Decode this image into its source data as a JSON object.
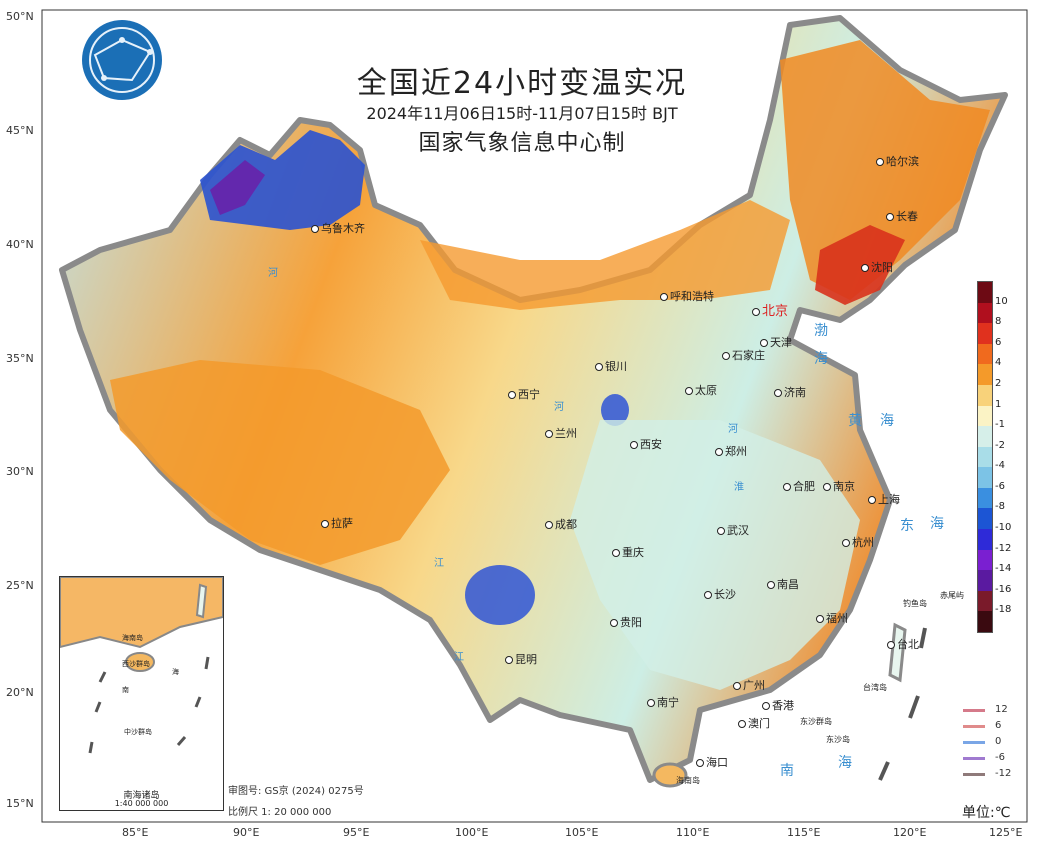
{
  "title": "全国近24小时变温实况",
  "time_range": "2024年11月06日15时-11月07日15时 BJT",
  "issuer": "国家气象信息中心制",
  "unit": "单位:℃",
  "review_number": "审图号: GS京 (2024) 0275号",
  "scale": "比例尺 1: 20 000 000",
  "lat_labels": [
    "50°N",
    "45°N",
    "40°N",
    "35°N",
    "30°N",
    "25°N",
    "20°N",
    "15°N"
  ],
  "lon_labels": [
    "85°E",
    "90°E",
    "95°E",
    "100°E",
    "105°E",
    "110°E",
    "115°E",
    "120°E",
    "125°E"
  ],
  "colorbar": {
    "labels": [
      "10",
      "8",
      "6",
      "4",
      "2",
      "1",
      "-1",
      "-2",
      "-4",
      "-6",
      "-8",
      "-10",
      "-12",
      "-14",
      "-16",
      "-18"
    ],
    "colors": [
      "#6d0a14",
      "#b00f1e",
      "#e0311e",
      "#f06a1e",
      "#f49a2a",
      "#f8d27a",
      "#fbf3c5",
      "#d6efe9",
      "#a9dde8",
      "#7cc3e6",
      "#3a8fe0",
      "#1c55d4",
      "#2e2ad8",
      "#7a1fd1",
      "#5a1aa0",
      "#7a1a2a",
      "#3a0a10"
    ]
  },
  "contour_legend": [
    {
      "label": "12",
      "color": "#d57a8a"
    },
    {
      "label": "6",
      "color": "#e08b8b"
    },
    {
      "label": "0",
      "color": "#7aa6e6"
    },
    {
      "label": "-6",
      "color": "#a07ad0"
    },
    {
      "label": "-12",
      "color": "#8f7a7a"
    }
  ],
  "cities": [
    "乌鲁木齐",
    "哈尔滨",
    "长春",
    "沈阳",
    "呼和浩特",
    "北京",
    "天津",
    "石家庄",
    "银川",
    "太原",
    "济南",
    "西宁",
    "兰州",
    "郑州",
    "西安",
    "合肥",
    "南京",
    "上海",
    "拉萨",
    "成都",
    "武汉",
    "杭州",
    "重庆",
    "长沙",
    "南昌",
    "贵阳",
    "福州",
    "台北",
    "昆明",
    "南宁",
    "广州",
    "香港",
    "澳门",
    "海口"
  ],
  "seas": [
    "渤",
    "海",
    "黄",
    "海",
    "东",
    "海",
    "南",
    "海"
  ],
  "rivers": [
    "河",
    "河",
    "江",
    "江",
    "河",
    "淮"
  ],
  "islands": [
    "钓鱼岛",
    "赤尾屿",
    "台湾岛",
    "东沙群岛",
    "海南岛",
    "东沙岛"
  ],
  "inset": {
    "name": "南海诸岛",
    "scale": "1:40 000 000",
    "labels": [
      "海南岛",
      "西沙群岛",
      "中沙群岛",
      "南",
      "海"
    ]
  }
}
